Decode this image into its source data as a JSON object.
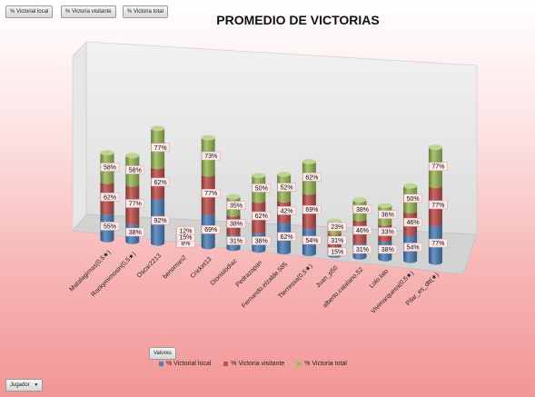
{
  "filters": {
    "field_buttons": [
      "% Victorial local",
      "% Victoria visitante",
      "% Victoria total"
    ],
    "values_label": "Valores",
    "axis_field": {
      "label": "Jugador",
      "icon": "chevron-down-icon"
    }
  },
  "chart_data": {
    "type": "bar",
    "stacked": true,
    "three_d": true,
    "title": "PROMEDIO DE VICTORIAS",
    "xlabel": "",
    "ylabel": "",
    "legend_position": "bottom",
    "categories": [
      "Matalagirnas(0,5★)",
      "Rockymimosin(0,5★)",
      "Oscar2213",
      "benoman2",
      "Cricket13",
      "Dionisiodiaz",
      "Pedrazopan",
      "Fernando.elzalde.585",
      "Tterressa(0,5★)",
      "Juan_p50",
      "alberto.catalano.52",
      "Lolo.lalo",
      "Vivimarquesa(0,5★)",
      "Pilar_es_dtt(★)"
    ],
    "series": [
      {
        "name": "% Victorial local",
        "color": "#4f81bd",
        "values": [
          55,
          38,
          92,
          8,
          69,
          31,
          38,
          62,
          54,
          15,
          31,
          38,
          54,
          77
        ],
        "labels": [
          "55%",
          "38%",
          "92%",
          "8%",
          "69%",
          "31%",
          "38%",
          "62%",
          "54%",
          "15%",
          "31%",
          "38%",
          "54%",
          "77%"
        ]
      },
      {
        "name": "% Victoria visitante",
        "color": "#c0504d",
        "values": [
          62,
          77,
          62,
          15,
          77,
          38,
          62,
          42,
          69,
          31,
          46,
          33,
          46,
          77
        ],
        "labels": [
          "62%",
          "77%",
          "62%",
          "15%",
          "77%",
          "38%",
          "62%",
          "42%",
          "69%",
          "31%",
          "46%",
          "33%",
          "46%",
          "77%"
        ]
      },
      {
        "name": "% Victoria total",
        "color": "#9bbb59",
        "values": [
          58,
          58,
          77,
          12,
          73,
          35,
          50,
          52,
          62,
          23,
          38,
          36,
          50,
          77
        ],
        "labels": [
          "58%",
          "58%",
          "77%",
          "12%",
          "73%",
          "35%",
          "50%",
          "52%",
          "62%",
          "23%",
          "38%",
          "36%",
          "50%",
          "77%"
        ]
      }
    ]
  }
}
